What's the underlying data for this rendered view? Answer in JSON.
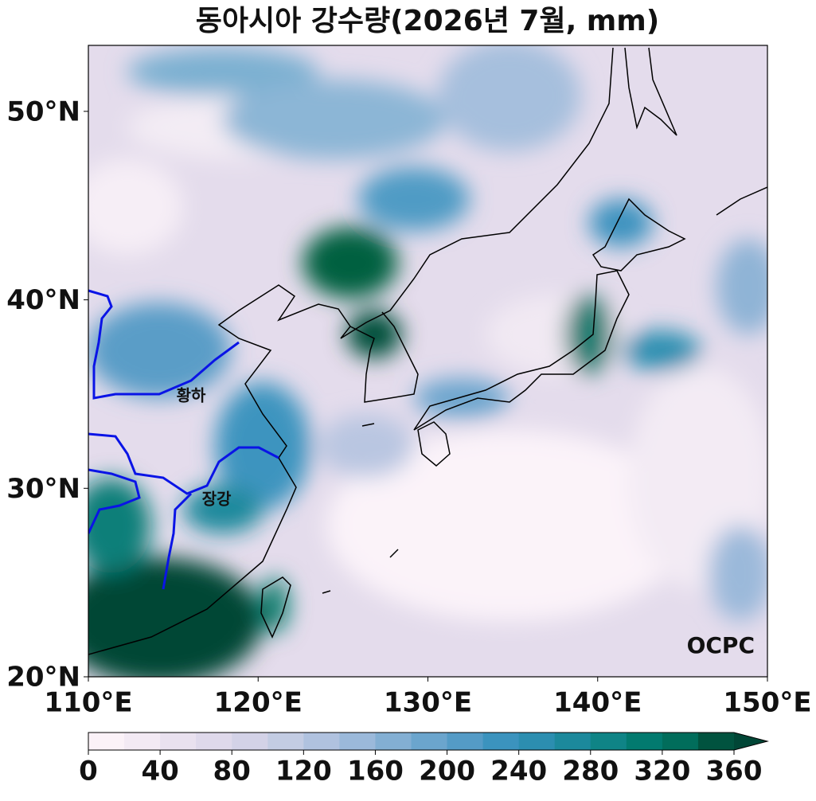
{
  "map": {
    "title": "동아시아 강수량(2026년 7월, mm)",
    "xlim": [
      110,
      150
    ],
    "ylim": [
      20,
      53.5
    ],
    "xticks": [
      {
        "value": 110,
        "label": "110°E"
      },
      {
        "value": 120,
        "label": "120°E"
      },
      {
        "value": 130,
        "label": "130°E"
      },
      {
        "value": 140,
        "label": "140°E"
      },
      {
        "value": 150,
        "label": "150°E"
      }
    ],
    "yticks": [
      {
        "value": 20,
        "label": "20°N"
      },
      {
        "value": 30,
        "label": "30°N"
      },
      {
        "value": 40,
        "label": "40°N"
      },
      {
        "value": 50,
        "label": "50°N"
      }
    ],
    "annotations": [
      "황하",
      "장강"
    ],
    "logo": "OCPC",
    "colorbar": {
      "clim": [
        0,
        360
      ],
      "ticks": [
        0,
        40,
        80,
        120,
        160,
        200,
        240,
        280,
        320,
        360
      ],
      "colors": [
        "#fbf2f8",
        "#f3eaf4",
        "#e9e1ef",
        "#dfd9eb",
        "#d3d2e7",
        "#c3cce3",
        "#b0c2df",
        "#9bb9da",
        "#83afd3",
        "#6ba5cd",
        "#549bc6",
        "#3b93be",
        "#2c8eb0",
        "#1c899c",
        "#0f8486",
        "#027a6f",
        "#016d5b",
        "#01533f"
      ],
      "extend_color": "#014636"
    }
  }
}
